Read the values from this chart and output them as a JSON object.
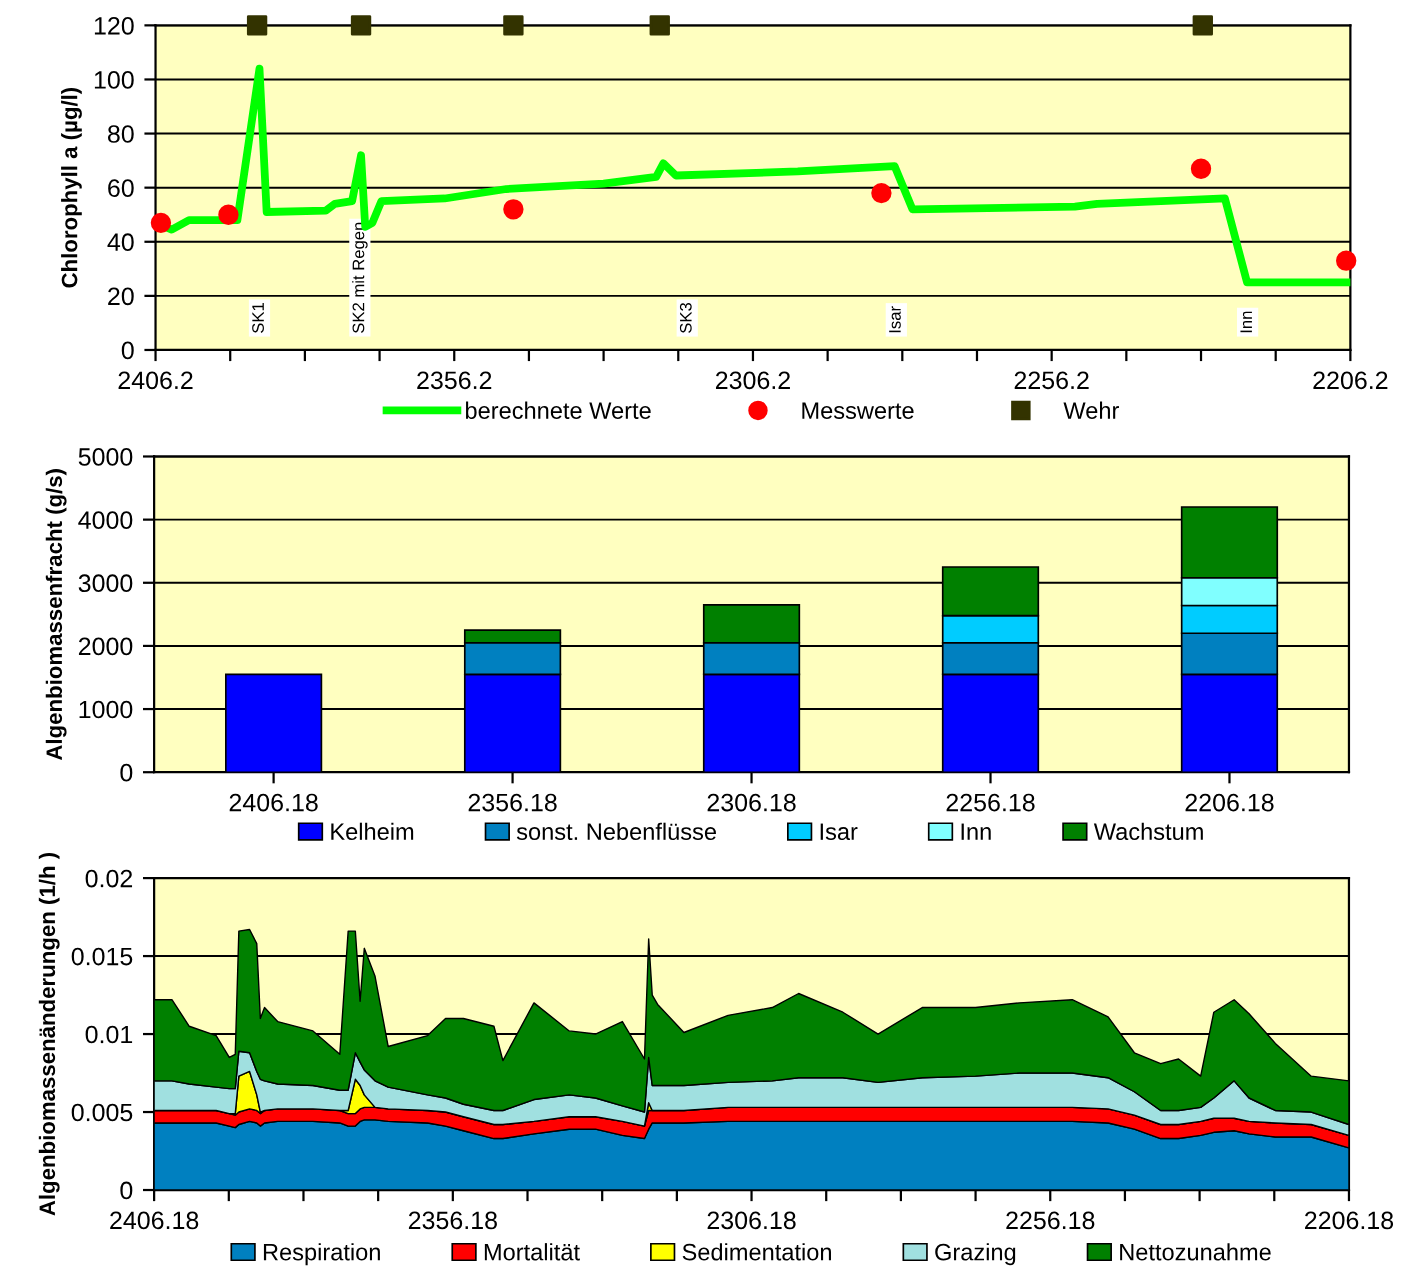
{
  "chart_data": [
    {
      "type": "line",
      "ylabel": "Chlorophyll a (µg/l)",
      "xlim": [
        2406.2,
        2206.2
      ],
      "ylim": [
        0,
        120
      ],
      "yticks": [
        0,
        20,
        40,
        60,
        80,
        100,
        120
      ],
      "xticks": [
        2406.2,
        {
          "value": 2393.7,
          "label": null
        },
        {
          "value": 2381.2,
          "label": null
        },
        {
          "value": 2368.7,
          "label": null
        },
        2356.2,
        {
          "value": 2343.7,
          "label": null
        },
        {
          "value": 2331.2,
          "label": null
        },
        {
          "value": 2318.7,
          "label": null
        },
        2306.2,
        {
          "value": 2293.7,
          "label": null
        },
        {
          "value": 2281.2,
          "label": null
        },
        {
          "value": 2268.7,
          "label": null
        },
        2256.2,
        {
          "value": 2243.7,
          "label": null
        },
        {
          "value": 2231.2,
          "label": null
        },
        {
          "value": 2218.7,
          "label": null
        },
        2206.2
      ],
      "grid": "y",
      "legend": "bottom",
      "series": [
        {
          "name": "berechnete Werte",
          "type": "line",
          "color": "#00ff00",
          "marker": "none",
          "line_style": "solid",
          "x": [
            2406.2,
            2403.5,
            2400.6,
            2392.5,
            2388.8,
            2387.6,
            2377.7,
            2376.2,
            2373.3,
            2371.8,
            2371.1,
            2369.9,
            2368.4,
            2357.8,
            2347.5,
            2331.2,
            2322.4,
            2321.2,
            2319.1,
            2298.7,
            2282.5,
            2279.5,
            2252.3,
            2248.6,
            2227.2,
            2223.5,
            2206.2
          ],
          "values": [
            47,
            44.5,
            48,
            48,
            104,
            51,
            51.5,
            54,
            55,
            72,
            45.5,
            47,
            55,
            56,
            59.5,
            61.5,
            64,
            69,
            64.5,
            66,
            68,
            52,
            53,
            54,
            56,
            25,
            25
          ]
        },
        {
          "name": "Messwerte",
          "type": "scatter",
          "color": "#ff0000",
          "marker": "circle",
          "x": [
            2405.3,
            2394,
            2346.3,
            2284.7,
            2231.2,
            2206.9
          ],
          "values": [
            47,
            50,
            52,
            58,
            67,
            33
          ]
        },
        {
          "name": "Wehr",
          "type": "scatter",
          "color": "#333300",
          "marker": "square",
          "x": [
            2389.2,
            2371.8,
            2346.3,
            2321.8,
            2230.9
          ],
          "values": [
            120,
            120,
            120,
            120,
            120
          ]
        }
      ],
      "annotations": [
        "SK1",
        "SK2 mit Regen",
        "SK3",
        "Isar",
        "Inn"
      ]
    },
    {
      "type": "bar",
      "stacked": true,
      "ylabel": "Algenbiomassenfracht (g/s)",
      "categories": [
        "2406.18",
        "2356.18",
        "2306.18",
        "2256.18",
        "2206.18"
      ],
      "ylim": [
        0,
        5000
      ],
      "yticks": [
        0,
        1000,
        2000,
        3000,
        4000,
        5000
      ],
      "grid": "y",
      "legend": "bottom",
      "series": [
        {
          "name": "Kelheim",
          "color": "#0000ff",
          "values": [
            1550,
            1550,
            1550,
            1550,
            1550
          ]
        },
        {
          "name": "sonst. Nebenflüsse",
          "color": "#0080c0",
          "values": [
            null,
            500,
            500,
            500,
            650
          ]
        },
        {
          "name": "Isar",
          "color": "#00ccff",
          "values": [
            null,
            null,
            null,
            430,
            440
          ]
        },
        {
          "name": "Inn",
          "color": "#80ffff",
          "values": [
            null,
            null,
            null,
            null,
            440
          ]
        },
        {
          "name": "Wachstum",
          "color": "#008000",
          "values": [
            null,
            200,
            600,
            770,
            1120
          ]
        }
      ]
    },
    {
      "type": "area",
      "stacked": true,
      "ylabel": "Algenbiomassenänderungen (1/h )",
      "xlim": [
        2406.18,
        2206.18
      ],
      "ylim": [
        0,
        0.02
      ],
      "yticks": [
        0,
        0.005,
        0.01,
        0.015,
        0.02
      ],
      "xticks": [
        2406.18,
        {
          "value": 2393.68,
          "label": null
        },
        {
          "value": 2381.18,
          "label": null
        },
        {
          "value": 2368.68,
          "label": null
        },
        2356.18,
        {
          "value": 2343.68,
          "label": null
        },
        {
          "value": 2331.18,
          "label": null
        },
        {
          "value": 2318.68,
          "label": null
        },
        2306.18,
        {
          "value": 2293.68,
          "label": null
        },
        {
          "value": 2281.18,
          "label": null
        },
        {
          "value": 2268.68,
          "label": null
        },
        2256.18,
        {
          "value": 2243.68,
          "label": null
        },
        {
          "value": 2231.18,
          "label": null
        },
        {
          "value": 2218.68,
          "label": null
        },
        2206.18
      ],
      "grid": "y",
      "legend": "bottom",
      "x": [
        2406.18,
        2403.2,
        2400.3,
        2395.8,
        2393.6,
        2392.6,
        2392.0,
        2390.2,
        2389.0,
        2388.4,
        2387.7,
        2385.5,
        2379.6,
        2375.1,
        2373.7,
        2372.5,
        2371.7,
        2371.0,
        2369.2,
        2367.0,
        2360.4,
        2357.4,
        2354.4,
        2349.3,
        2347.8,
        2342.6,
        2336.7,
        2332.3,
        2327.8,
        2324.1,
        2323.4,
        2322.8,
        2321.9,
        2317.5,
        2310.1,
        2302.7,
        2298.3,
        2290.9,
        2285.0,
        2277.6,
        2268.7,
        2261.3,
        2252.5,
        2246.5,
        2242.1,
        2237.7,
        2234.7,
        2231.0,
        2228.8,
        2225.4,
        2222.9,
        2218.5,
        2212.5,
        2206.18
      ],
      "series": [
        {
          "name": "Respiration",
          "color": "#0080c0",
          "values": [
            0.0043,
            0.0043,
            0.0043,
            0.0043,
            0.0041,
            0.004,
            0.0042,
            0.0044,
            0.0043,
            0.0041,
            0.0043,
            0.0044,
            0.0044,
            0.0043,
            0.0041,
            0.0041,
            0.0044,
            0.0045,
            0.0045,
            0.0044,
            0.0043,
            0.0041,
            0.0038,
            0.0033,
            0.0033,
            0.0036,
            0.0039,
            0.0039,
            0.0035,
            0.0033,
            0.0039,
            0.0043,
            0.0043,
            0.0043,
            0.0044,
            0.0044,
            0.0044,
            0.0044,
            0.0044,
            0.0044,
            0.0044,
            0.0044,
            0.0044,
            0.0043,
            0.0039,
            0.0033,
            0.0033,
            0.0035,
            0.0037,
            0.0038,
            0.0036,
            0.0034,
            0.0034,
            0.0027
          ]
        },
        {
          "name": "Mortalität",
          "color": "#ff0000",
          "values": [
            0.0008,
            0.0008,
            0.0008,
            0.0008,
            0.0008,
            0.0008,
            0.0008,
            0.0008,
            0.0008,
            0.0008,
            0.0008,
            0.0008,
            0.0008,
            0.0008,
            0.0008,
            0.0008,
            0.0008,
            0.0008,
            0.0008,
            0.0008,
            0.0008,
            0.0009,
            0.0009,
            0.0009,
            0.0009,
            0.0008,
            0.0008,
            0.0008,
            0.0009,
            0.0008,
            0.0012,
            0.0008,
            0.0008,
            0.0008,
            0.0009,
            0.0009,
            0.0009,
            0.0009,
            0.0009,
            0.0009,
            0.0009,
            0.0009,
            0.0009,
            0.0009,
            0.0009,
            0.0009,
            0.0009,
            0.0009,
            0.0009,
            0.0008,
            0.0008,
            0.0009,
            0.0008,
            0.0008
          ]
        },
        {
          "name": "Sedimentation",
          "color": "#ffff00",
          "values": [
            0,
            0,
            0,
            0,
            0,
            0.0001,
            0.0023,
            0.0024,
            0.001,
            0.0001,
            0,
            0,
            0,
            0,
            0.0002,
            0.0022,
            0.0015,
            0.0008,
            0,
            0,
            0,
            0,
            0,
            0,
            0,
            0,
            0,
            0,
            0,
            0,
            0.0005,
            0,
            0,
            0,
            0,
            0,
            0,
            0,
            0,
            0,
            0,
            0,
            0,
            0,
            0,
            0,
            0,
            0,
            0,
            0,
            0,
            0,
            0,
            0
          ]
        },
        {
          "name": "Grazing",
          "color": "#a0e0e0",
          "values": [
            0.0019,
            0.0019,
            0.0017,
            0.0015,
            0.0016,
            0.0016,
            0.0016,
            0.0012,
            0.0015,
            0.0021,
            0.0019,
            0.0016,
            0.0015,
            0.0013,
            0.0013,
            0.0017,
            0.0015,
            0.0016,
            0.0017,
            0.0014,
            0.001,
            0.0009,
            0.0008,
            0.0009,
            0.0009,
            0.0014,
            0.0014,
            0.0012,
            0.001,
            0.0009,
            0.0029,
            0.0016,
            0.0016,
            0.0016,
            0.0016,
            0.0017,
            0.0019,
            0.0019,
            0.0016,
            0.0019,
            0.002,
            0.0022,
            0.0022,
            0.002,
            0.0015,
            0.0009,
            0.0009,
            0.0009,
            0.0013,
            0.0024,
            0.0015,
            0.0008,
            0.0008,
            0.0007
          ]
        },
        {
          "name": "Nettozunahme",
          "color": "#008000",
          "values": [
            0.0052,
            0.0052,
            0.0037,
            0.0033,
            0.002,
            0.0022,
            0.0077,
            0.0079,
            0.0082,
            0.0039,
            0.0047,
            0.004,
            0.0035,
            0.0023,
            0.0102,
            0.0078,
            0.0039,
            0.0078,
            0.0067,
            0.0026,
            0.0038,
            0.0051,
            0.0055,
            0.0054,
            0.0032,
            0.0062,
            0.0041,
            0.0041,
            0.0054,
            0.0034,
            0.0076,
            0.0058,
            0.0052,
            0.0034,
            0.0043,
            0.0047,
            0.0054,
            0.0042,
            0.0031,
            0.0045,
            0.0044,
            0.0045,
            0.0047,
            0.0039,
            0.0025,
            0.003,
            0.0033,
            0.002,
            0.0055,
            0.0052,
            0.0054,
            0.0043,
            0.0023,
            0.0028
          ]
        }
      ]
    }
  ]
}
